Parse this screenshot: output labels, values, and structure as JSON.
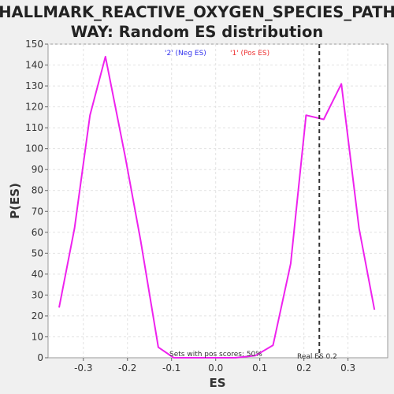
{
  "chart_data": {
    "type": "line",
    "title_line1": "HALLMARK_REACTIVE_OXYGEN_SPECIES_PATH",
    "title_line2": "WAY: Random ES distribution",
    "xlabel": "ES",
    "ylabel": "P(ES)",
    "xlim": [
      -0.38,
      0.39
    ],
    "ylim": [
      0,
      150
    ],
    "x_ticks": [
      -0.3,
      -0.2,
      -0.1,
      0.0,
      0.1,
      0.2,
      0.3
    ],
    "x_tick_labels": [
      "-0.3",
      "-0.2",
      "-0.1",
      "0.0",
      "0.1",
      "0.2",
      "0.3"
    ],
    "y_ticks": [
      0,
      10,
      20,
      30,
      40,
      50,
      60,
      70,
      80,
      90,
      100,
      110,
      120,
      130,
      140,
      150
    ],
    "grid": true,
    "series": [
      {
        "color": "#ee22ee",
        "x": [
          -0.355,
          -0.32,
          -0.285,
          -0.25,
          -0.205,
          -0.17,
          -0.13,
          -0.095,
          -0.06,
          -0.025,
          0.01,
          0.045,
          0.09,
          0.13,
          0.17,
          0.205,
          0.245,
          0.285,
          0.325,
          0.36
        ],
        "y": [
          24,
          62,
          116,
          144,
          96,
          56,
          5,
          0,
          0,
          0,
          0,
          0,
          1,
          6,
          45,
          116,
          114,
          131,
          62,
          23
        ]
      }
    ],
    "real_es": 0.235,
    "real_es_color": "#333333",
    "legend": [
      {
        "label": "'2' (Neg ES)",
        "color": "#3333ee"
      },
      {
        "label": "'1' (Pos ES)",
        "color": "#ee3333"
      }
    ],
    "annotation_pos_scores": "Sets with pos scores: 50%",
    "annotation_real_es": "Real ES 0.2"
  }
}
